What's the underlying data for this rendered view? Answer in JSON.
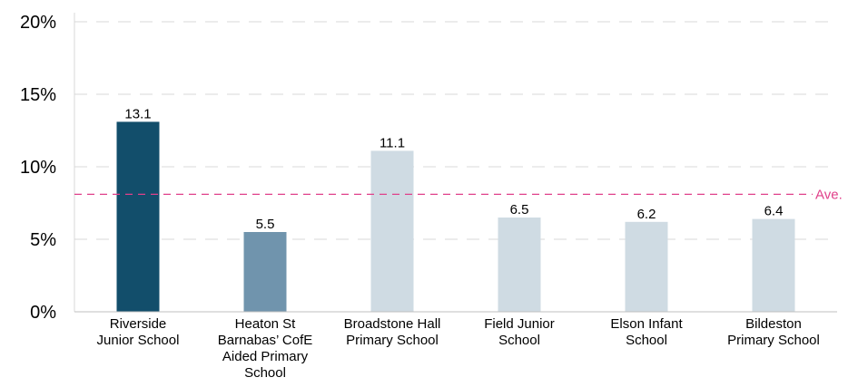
{
  "chart_data": {
    "type": "bar",
    "categories": [
      [
        "Riverside",
        "Junior School"
      ],
      [
        "Heaton St",
        "Barnabas’ CofE",
        "Aided Primary",
        "School"
      ],
      [
        "Broadstone Hall",
        "Primary School"
      ],
      [
        "Field Junior",
        "School"
      ],
      [
        "Elson Infant",
        "School"
      ],
      [
        "Bildeston",
        "Primary School"
      ]
    ],
    "values": [
      13.1,
      5.5,
      11.1,
      6.5,
      6.2,
      6.4
    ],
    "data_labels": [
      "13.1",
      "5.5",
      "11.1",
      "6.5",
      "6.2",
      "6.4"
    ],
    "bar_colors": [
      "#124e6b",
      "#7094ad",
      "#cfdbe3",
      "#cfdbe3",
      "#cfdbe3",
      "#cfdbe3"
    ],
    "y_ticks": [
      0,
      5,
      10,
      15,
      20
    ],
    "y_tick_labels": [
      "0%",
      "5%",
      "10%",
      "15%",
      "20%"
    ],
    "ylim": [
      0,
      20
    ],
    "grid": true,
    "grid_color": "#d9d9d9",
    "average": {
      "value": 8.1,
      "label": "Ave.",
      "color": "#e0408a"
    },
    "title": "",
    "xlabel": "",
    "ylabel": ""
  }
}
